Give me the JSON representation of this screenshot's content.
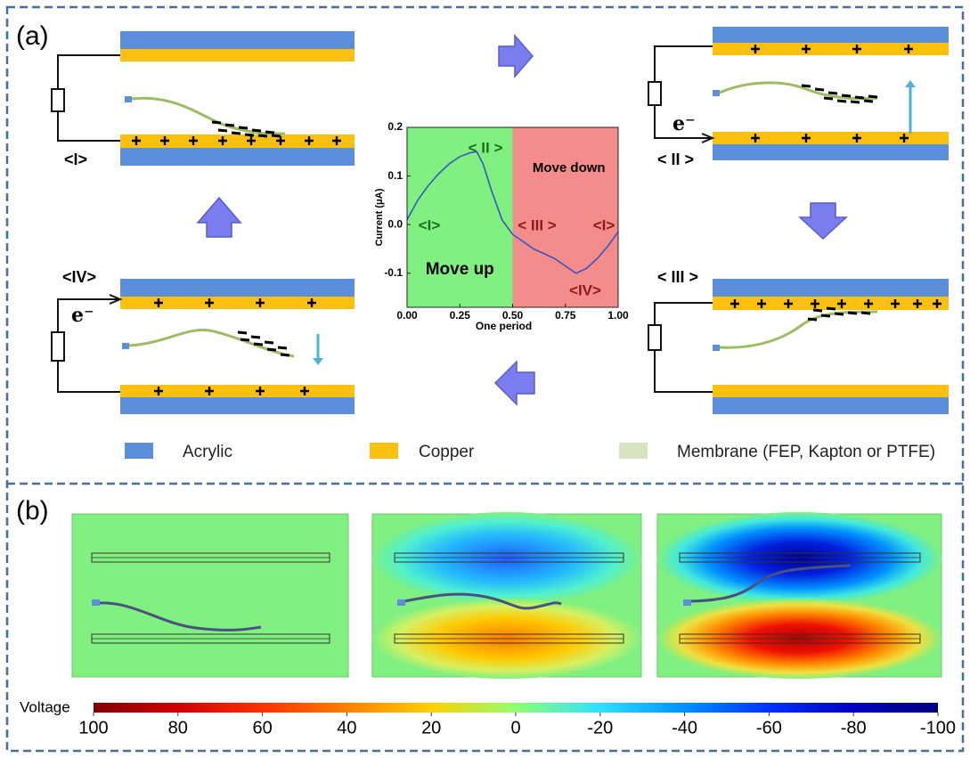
{
  "panel_a": {
    "label": "(a)",
    "states": [
      {
        "label": "<I>"
      },
      {
        "label": "< II >",
        "electron": "e⁻"
      },
      {
        "label": "< III >"
      },
      {
        "label": "<IV>",
        "electron": "e⁻"
      }
    ],
    "legend": [
      {
        "name": "Acrylic",
        "color": "#5b8fd9"
      },
      {
        "name": "Copper",
        "color": "#fbbf0e"
      },
      {
        "name": "Membrane (FEP, Kapton or PTFE)",
        "color": "#d6e4c1"
      }
    ],
    "chart_data": {
      "type": "line",
      "xlabel": "One period",
      "ylabel": "Current (μA)",
      "x": [
        0,
        0.05,
        0.1,
        0.15,
        0.2,
        0.25,
        0.3,
        0.33,
        0.36,
        0.4,
        0.45,
        0.5,
        0.55,
        0.6,
        0.65,
        0.7,
        0.75,
        0.8,
        0.85,
        0.9,
        0.95,
        1.0
      ],
      "series": [
        {
          "color": "#3a55c0",
          "values": [
            0.01,
            0.05,
            0.08,
            0.105,
            0.125,
            0.14,
            0.148,
            0.15,
            0.125,
            0.07,
            0.01,
            -0.02,
            -0.035,
            -0.05,
            -0.06,
            -0.07,
            -0.085,
            -0.1,
            -0.09,
            -0.07,
            -0.045,
            -0.015
          ]
        }
      ],
      "xlim": [
        0,
        1
      ],
      "ylim": [
        -0.17,
        0.2
      ],
      "xticks": [
        {
          "value": 0,
          "label": "0.00"
        },
        {
          "value": 0.25,
          "label": "0.25"
        },
        {
          "value": 0.5,
          "label": "0.50"
        },
        {
          "value": 0.75,
          "label": "0.75"
        },
        {
          "value": 1,
          "label": "1.00"
        }
      ],
      "yticks": [
        0.2,
        0.1,
        {
          "value": 0,
          "label": "0.0"
        },
        -0.1
      ],
      "regions": [
        {
          "label": "Move up",
          "xlim": [
            0,
            0.5
          ],
          "color": "#80f080"
        },
        {
          "label": "Move down",
          "xlim": [
            0.5,
            1
          ],
          "color": "#f48c8c"
        }
      ],
      "annotations": [
        {
          "text": "<I>",
          "color": "#1f6e1f"
        },
        {
          "text": "< II >",
          "color": "#1f6e1f"
        },
        {
          "text": "< III >",
          "color": "#8b1a1a"
        },
        {
          "text": "<I>",
          "color": "#8b1a1a"
        },
        {
          "text": "<IV>",
          "color": "#8b1a1a"
        }
      ]
    }
  },
  "panel_b": {
    "label": "(b)",
    "colorbar": {
      "title": "Voltage",
      "lim": [
        100,
        -100
      ],
      "ticks": [
        100,
        80,
        60,
        40,
        20,
        0,
        -20,
        -40,
        -60,
        -80,
        -100
      ]
    }
  }
}
